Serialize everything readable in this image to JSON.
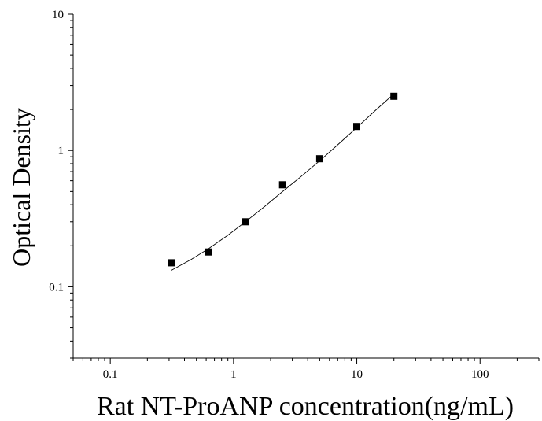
{
  "chart_data": {
    "type": "scatter",
    "title": "",
    "xlabel": "Rat NT-ProANP concentration(ng/mL)",
    "ylabel": "Optical Density",
    "x_scale": "log",
    "y_scale": "log",
    "xlim": [
      0.05,
      300
    ],
    "ylim": [
      0.03,
      10
    ],
    "x_ticks": [
      {
        "value": 0.1,
        "label": "0.1"
      },
      {
        "value": 1,
        "label": "1"
      },
      {
        "value": 10,
        "label": "10"
      },
      {
        "value": 100,
        "label": "100"
      }
    ],
    "y_ticks": [
      {
        "value": 0.1,
        "label": "0.1"
      },
      {
        "value": 1,
        "label": "1"
      },
      {
        "value": 10,
        "label": "10"
      }
    ],
    "grid": false,
    "legend": "none",
    "marker_color": "#000000",
    "series": [
      {
        "x": [
          0.3125,
          0.625,
          1.25,
          2.5,
          5,
          10,
          20
        ],
        "y": [
          0.15,
          0.18,
          0.3,
          0.56,
          0.87,
          1.5,
          2.5
        ],
        "marker": "square"
      }
    ],
    "fit_curve": {
      "x": [
        0.3125,
        0.45,
        0.625,
        0.9,
        1.25,
        1.8,
        2.5,
        3.5,
        5,
        7,
        10,
        14,
        20
      ],
      "y": [
        0.132,
        0.158,
        0.19,
        0.239,
        0.3,
        0.39,
        0.5,
        0.64,
        0.84,
        1.1,
        1.47,
        1.95,
        2.6
      ]
    }
  }
}
